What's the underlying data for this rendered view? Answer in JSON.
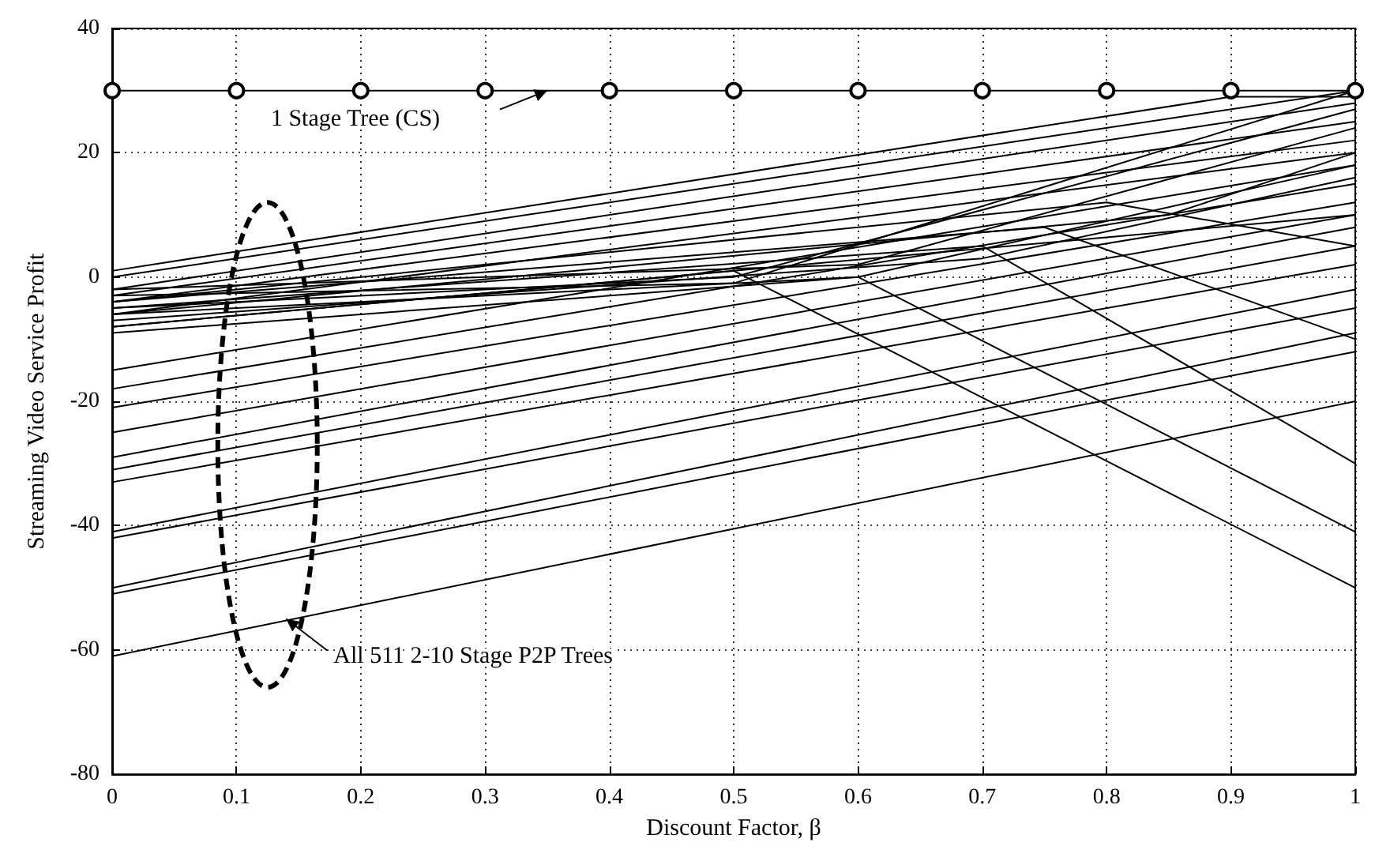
{
  "chart_data": {
    "type": "line",
    "xlabel": "Discount Factor, β",
    "ylabel": "Streaming Video Service Profit",
    "xlim": [
      0,
      1
    ],
    "xticks": [
      0,
      0.1,
      0.2,
      0.3,
      0.4,
      0.5,
      0.6,
      0.7,
      0.8,
      0.9,
      1
    ],
    "ylim": [
      -80,
      40
    ],
    "yticks": [
      -80,
      -60,
      -40,
      -20,
      0,
      20,
      40
    ],
    "grid": true,
    "marker": "none",
    "line_style": "solid",
    "annotations": [
      "1 Stage Tree (CS)",
      "All 511 2-10 Stage P2P Trees"
    ],
    "series": [
      {
        "color": "#000000",
        "marker": "circle",
        "x": [
          0,
          0.1,
          0.2,
          0.3,
          0.4,
          0.5,
          0.6,
          0.7,
          0.8,
          0.9,
          1
        ],
        "values": [
          30,
          30,
          30,
          30,
          30,
          30,
          30,
          30,
          30,
          30,
          30
        ]
      },
      {
        "color": "#000000",
        "x": [
          0,
          1
        ],
        "values": [
          -61,
          -20
        ]
      },
      {
        "color": "#000000",
        "x": [
          0,
          1
        ],
        "values": [
          -51,
          -12
        ]
      },
      {
        "color": "#000000",
        "x": [
          0,
          1
        ],
        "values": [
          -50,
          -9
        ]
      },
      {
        "color": "#000000",
        "x": [
          0,
          1
        ],
        "values": [
          -42,
          -5
        ]
      },
      {
        "color": "#000000",
        "x": [
          0,
          1
        ],
        "values": [
          -41,
          -2
        ]
      },
      {
        "color": "#000000",
        "x": [
          0,
          1
        ],
        "values": [
          -33,
          2
        ]
      },
      {
        "color": "#000000",
        "x": [
          0,
          1
        ],
        "values": [
          -31,
          5
        ]
      },
      {
        "color": "#000000",
        "x": [
          0,
          1
        ],
        "values": [
          -29,
          8
        ]
      },
      {
        "color": "#000000",
        "x": [
          0,
          1
        ],
        "values": [
          -25,
          10
        ]
      },
      {
        "color": "#000000",
        "x": [
          0,
          1
        ],
        "values": [
          -21,
          12
        ]
      },
      {
        "color": "#000000",
        "x": [
          0,
          1
        ],
        "values": [
          -18,
          15
        ]
      },
      {
        "color": "#000000",
        "x": [
          0,
          1
        ],
        "values": [
          -15,
          18
        ]
      },
      {
        "color": "#000000",
        "x": [
          0,
          0.5,
          1
        ],
        "values": [
          -8,
          1,
          -50
        ]
      },
      {
        "color": "#000000",
        "x": [
          0,
          0.6,
          1
        ],
        "values": [
          -6,
          0,
          -41
        ]
      },
      {
        "color": "#000000",
        "x": [
          0,
          0.7,
          1
        ],
        "values": [
          -5,
          5,
          -30
        ]
      },
      {
        "color": "#000000",
        "x": [
          0,
          0.75,
          1
        ],
        "values": [
          -4,
          8,
          -10
        ]
      },
      {
        "color": "#000000",
        "x": [
          0,
          1
        ],
        "values": [
          0,
          30
        ]
      },
      {
        "color": "#000000",
        "x": [
          0,
          1
        ],
        "values": [
          -2,
          28
        ]
      },
      {
        "color": "#000000",
        "x": [
          0,
          1
        ],
        "values": [
          -3,
          25
        ]
      },
      {
        "color": "#000000",
        "x": [
          0,
          1
        ],
        "values": [
          -4,
          22
        ]
      },
      {
        "color": "#000000",
        "x": [
          0,
          1
        ],
        "values": [
          -6,
          20
        ]
      },
      {
        "color": "#000000",
        "x": [
          0,
          0.5,
          1
        ],
        "values": [
          -3,
          -1,
          30
        ]
      },
      {
        "color": "#000000",
        "x": [
          0,
          0.5,
          1
        ],
        "values": [
          -5,
          0,
          27
        ]
      },
      {
        "color": "#000000",
        "x": [
          0,
          0.6,
          1
        ],
        "values": [
          -2,
          2,
          24
        ]
      },
      {
        "color": "#000000",
        "x": [
          0,
          0.6,
          1
        ],
        "values": [
          -9,
          0,
          18
        ]
      },
      {
        "color": "#000000",
        "x": [
          0,
          0.7,
          1
        ],
        "values": [
          -7,
          3,
          16
        ]
      },
      {
        "color": "#000000",
        "x": [
          0,
          1
        ],
        "values": [
          -8,
          10
        ]
      },
      {
        "color": "#000000",
        "x": [
          0,
          0.8,
          1
        ],
        "values": [
          -4,
          12,
          5
        ]
      },
      {
        "color": "#000000",
        "x": [
          0,
          0.85,
          1
        ],
        "values": [
          -6,
          10,
          20
        ]
      },
      {
        "color": "#000000",
        "x": [
          0,
          0.9,
          1
        ],
        "values": [
          1,
          29,
          29
        ]
      }
    ]
  }
}
